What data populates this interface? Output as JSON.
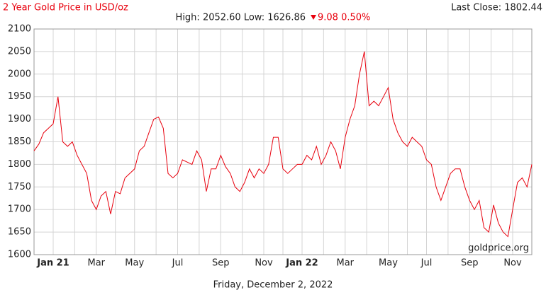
{
  "chart_data": {
    "type": "line",
    "title": "2 Year Gold Price in USD/oz",
    "subtitle": "High: 2052.60 Low: 1626.86",
    "change": "9.08 0.50%",
    "last_close": "Last Close: 1802.44",
    "watermark": "goldprice.org",
    "xlabel": "Friday, December 2, 2022",
    "categories": [
      null,
      null,
      null,
      null,
      "Jan 21",
      null,
      null,
      null,
      null,
      null,
      null,
      null,
      null,
      "Mar",
      null,
      null,
      null,
      null,
      null,
      null,
      null,
      "May",
      null,
      null,
      null,
      null,
      null,
      null,
      null,
      null,
      "Jul",
      null,
      null,
      null,
      null,
      null,
      null,
      null,
      null,
      "Sep",
      null,
      null,
      null,
      null,
      null,
      null,
      null,
      null,
      "Nov",
      null,
      null,
      null,
      null,
      null,
      null,
      null,
      "Jan 22",
      null,
      null,
      null,
      null,
      null,
      null,
      null,
      null,
      "Mar",
      null,
      null,
      null,
      null,
      null,
      null,
      null,
      null,
      "May",
      null,
      null,
      null,
      null,
      null,
      null,
      null,
      "Jul",
      null,
      null,
      null,
      null,
      null,
      null,
      null,
      null,
      "Sep",
      null,
      null,
      null,
      null,
      null,
      null,
      null,
      null,
      "Nov",
      null,
      null,
      null,
      null
    ],
    "series": [
      {
        "name": "Gold",
        "color": "#e8000d",
        "values": [
          1830,
          1845,
          1870,
          1880,
          1890,
          1950,
          1850,
          1840,
          1850,
          1820,
          1800,
          1780,
          1720,
          1700,
          1730,
          1740,
          1690,
          1740,
          1735,
          1770,
          1780,
          1790,
          1830,
          1840,
          1870,
          1900,
          1905,
          1880,
          1780,
          1770,
          1780,
          1810,
          1805,
          1800,
          1830,
          1810,
          1740,
          1790,
          1790,
          1820,
          1795,
          1780,
          1750,
          1740,
          1760,
          1790,
          1770,
          1790,
          1780,
          1800,
          1860,
          1860,
          1790,
          1780,
          1790,
          1800,
          1800,
          1820,
          1810,
          1840,
          1800,
          1820,
          1850,
          1830,
          1790,
          1860,
          1900,
          1930,
          2000,
          2050,
          1930,
          1940,
          1930,
          1950,
          1970,
          1900,
          1870,
          1850,
          1840,
          1860,
          1850,
          1840,
          1810,
          1800,
          1750,
          1720,
          1750,
          1780,
          1790,
          1790,
          1750,
          1720,
          1700,
          1720,
          1660,
          1650,
          1710,
          1670,
          1650,
          1640,
          1700,
          1760,
          1770,
          1750,
          1800
        ]
      }
    ],
    "ylim": [
      1600,
      2100
    ],
    "yticks": [
      1600,
      1650,
      1700,
      1750,
      1800,
      1850,
      1900,
      1950,
      2000,
      2050,
      2100
    ],
    "grid": true
  }
}
